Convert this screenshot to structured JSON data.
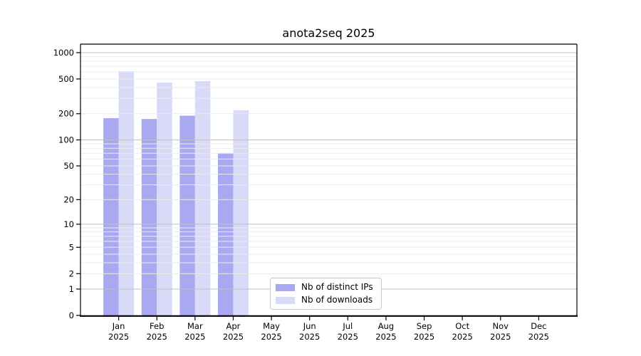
{
  "chart_data": {
    "type": "bar",
    "title": "anota2seq 2025",
    "categories": [
      "Jan 2025",
      "Feb 2025",
      "Mar 2025",
      "Apr 2025",
      "May 2025",
      "Jun 2025",
      "Jul 2025",
      "Aug 2025",
      "Sep 2025",
      "Oct 2025",
      "Nov 2025",
      "Dec 2025"
    ],
    "series": [
      {
        "name": "Nb of distinct IPs",
        "color": "#a9a9f2",
        "values": [
          178,
          174,
          190,
          70,
          null,
          null,
          null,
          null,
          null,
          null,
          null,
          null
        ]
      },
      {
        "name": "Nb of downloads",
        "color": "#d9d9f8",
        "values": [
          614,
          455,
          472,
          219,
          null,
          null,
          null,
          null,
          null,
          null,
          null,
          null
        ]
      }
    ],
    "y_axis": {
      "ticks": [
        0,
        1,
        2,
        5,
        10,
        20,
        50,
        100,
        200,
        500,
        1000
      ],
      "scale": "log10(value+1)",
      "max": 1250
    },
    "x_axis": {
      "label_line2": "2025"
    },
    "grid": {
      "major_lines": [
        1,
        10,
        100,
        1000
      ],
      "minor_multiples": [
        2,
        3,
        4,
        5,
        6,
        7,
        8,
        9
      ],
      "major_color": "#c0c0c0",
      "minor_color": "#ebebeb"
    },
    "legend": {
      "position": "bottom-center"
    },
    "colors": {
      "spine": "#000000",
      "tick_text": "#000000"
    }
  }
}
